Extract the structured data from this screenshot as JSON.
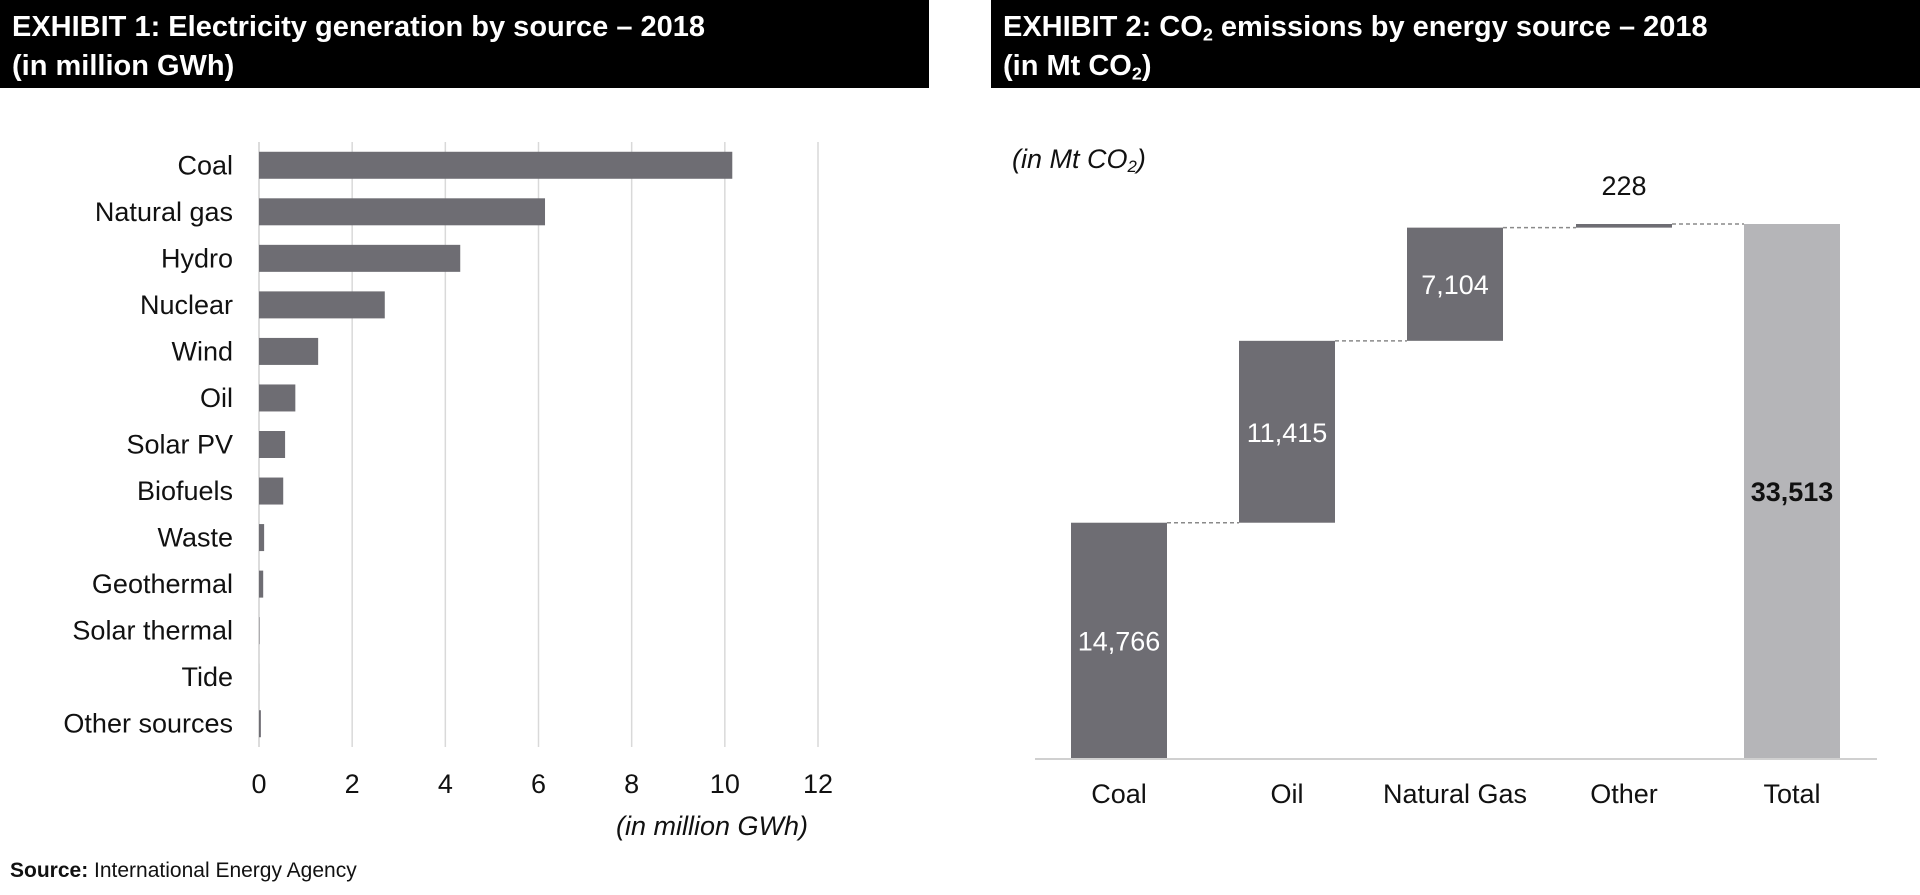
{
  "exhibit1": {
    "title_line1": "EXHIBIT 1: Electricity generation by source – 2018",
    "title_line2": "(in million GWh)"
  },
  "exhibit2": {
    "title_line1_pre": "EXHIBIT 2: CO",
    "title_line1_sub": "2",
    "title_line1_post": " emissions by energy source – 2018",
    "title_line2_pre": "(in Mt CO",
    "title_line2_sub": "2",
    "title_line2_post": ")",
    "unit_pre": "(in Mt CO",
    "unit_sub": "2",
    "unit_post": ")"
  },
  "source": {
    "label": "Source:",
    "text": " International Energy Agency"
  },
  "colors": {
    "bar": "#6e6d73",
    "total": "#b5b5b8",
    "grid": "#d9d9d9",
    "axis": "#d0d0d0",
    "connector": "#8a8a8a",
    "label_light": "#ffffff",
    "label_dark": "#111111"
  },
  "chart_data": [
    {
      "type": "bar",
      "orientation": "horizontal",
      "categories": [
        "Coal",
        "Natural gas",
        "Hydro",
        "Nuclear",
        "Wind",
        "Oil",
        "Solar PV",
        "Biofuels",
        "Waste",
        "Geothermal",
        "Solar thermal",
        "Tide",
        "Other sources"
      ],
      "values": [
        10.16,
        6.14,
        4.32,
        2.7,
        1.27,
        0.78,
        0.56,
        0.52,
        0.11,
        0.09,
        0.01,
        0.001,
        0.04
      ],
      "xlim": [
        0,
        12
      ],
      "xticks": [
        0,
        2,
        4,
        6,
        8,
        10,
        12
      ],
      "xlabel": "(in million GWh)",
      "grid": true
    },
    {
      "type": "bar",
      "subtype": "waterfall",
      "categories": [
        "Coal",
        "Oil",
        "Natural Gas",
        "Other",
        "Total"
      ],
      "values": [
        14766,
        11415,
        7104,
        228,
        33513
      ],
      "labels": [
        "14,766",
        "11,415",
        "7,104",
        "228",
        "33,513"
      ],
      "is_total": [
        false,
        false,
        false,
        false,
        true
      ],
      "ylim": [
        0,
        34000
      ]
    }
  ]
}
